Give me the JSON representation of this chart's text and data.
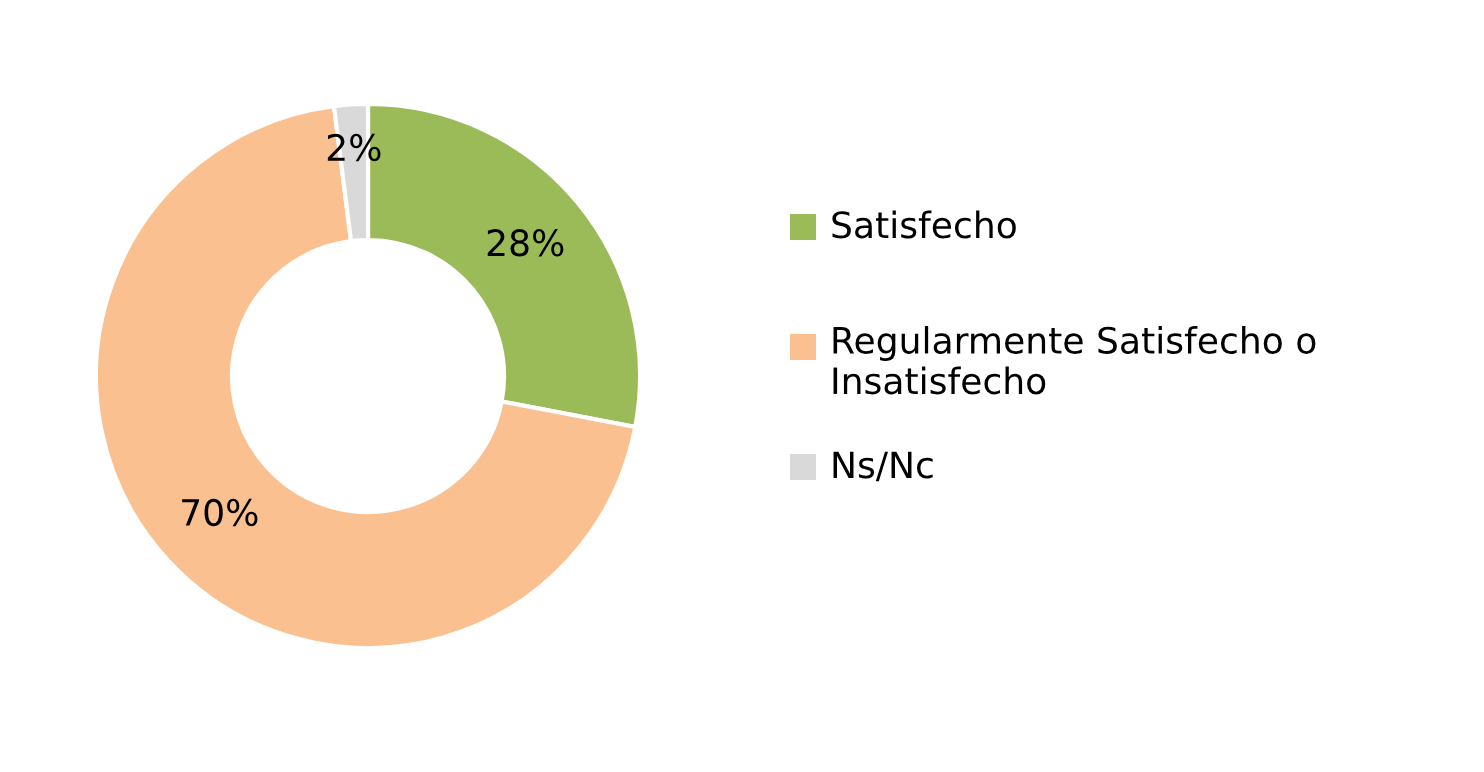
{
  "chart_data": {
    "type": "donut",
    "categories": [
      "Satisfecho",
      "Regularmente Satisfecho o Insatisfecho",
      "Ns/Nc"
    ],
    "values": [
      28,
      70,
      2
    ],
    "colors": [
      "#9bbb59",
      "#fac090",
      "#d9d9d9"
    ],
    "value_labels": [
      "28%",
      "70%",
      "2%"
    ],
    "legend": "right"
  }
}
